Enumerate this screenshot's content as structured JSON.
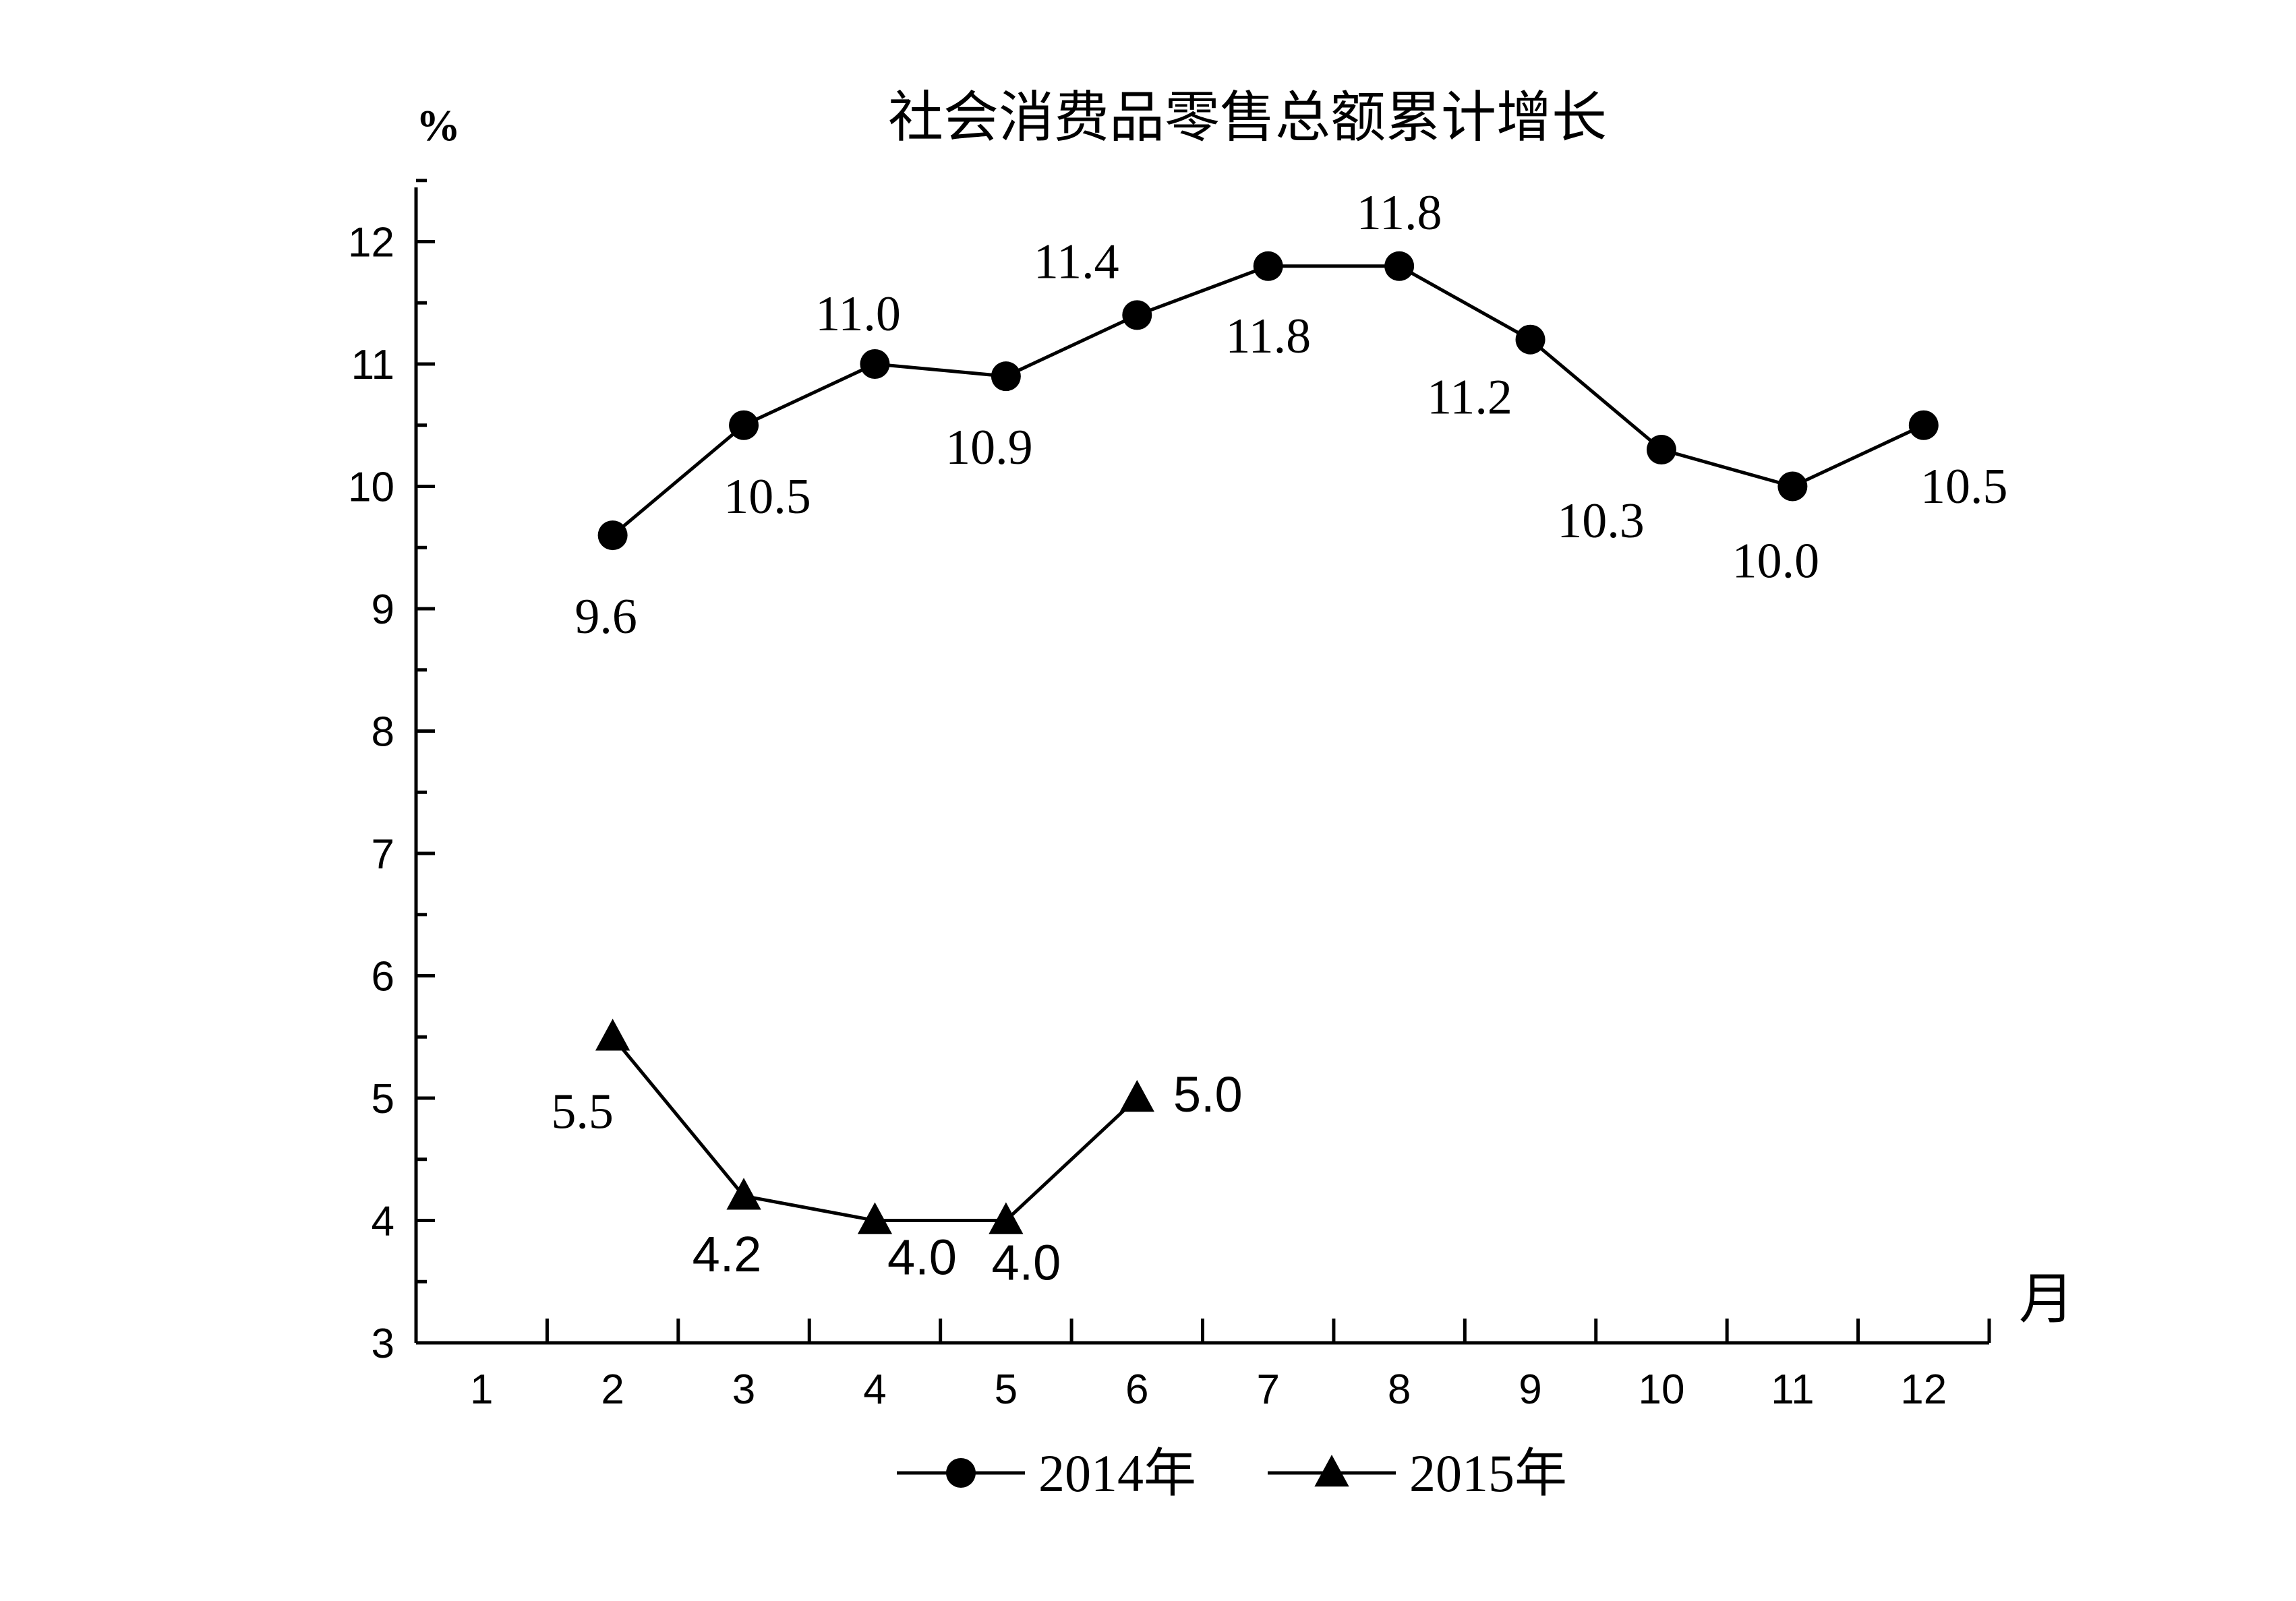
{
  "chart_data": {
    "type": "line",
    "title": "社会消费品零售总额累计增长",
    "ylabel": "%",
    "xlabel": "月",
    "x": [
      1,
      2,
      3,
      4,
      5,
      6,
      7,
      8,
      9,
      10,
      11,
      12
    ],
    "x_tick_labels": [
      "1",
      "2",
      "3",
      "4",
      "5",
      "6",
      "7",
      "8",
      "9",
      "10",
      "11",
      "12"
    ],
    "xlim": [
      0.5,
      12.5
    ],
    "ylim": [
      3,
      12.5
    ],
    "y_ticks": [
      3,
      4,
      5,
      6,
      7,
      8,
      9,
      10,
      11,
      12
    ],
    "y_tick_labels": [
      "3",
      "4",
      "5",
      "6",
      "7",
      "8",
      "9",
      "10",
      "11",
      "12"
    ],
    "grid": false,
    "legend_position": "bottom",
    "series": [
      {
        "name": "2014年",
        "marker": "circle",
        "color": "#000000",
        "x": [
          2,
          3,
          4,
          5,
          6,
          7,
          8,
          9,
          10,
          11,
          12
        ],
        "values": [
          9.6,
          10.5,
          11.0,
          10.9,
          11.4,
          11.8,
          11.8,
          11.2,
          10.3,
          10.0,
          10.5
        ],
        "labels": [
          "9.6",
          "10.5",
          "11.0",
          "10.9",
          "11.4",
          "11.8",
          "11.8",
          "11.2",
          "10.3",
          "10.0",
          "10.5"
        ]
      },
      {
        "name": "2015年",
        "marker": "triangle",
        "color": "#000000",
        "x": [
          2,
          3,
          4,
          5,
          6
        ],
        "values": [
          5.5,
          4.2,
          4.0,
          4.0,
          5.0
        ],
        "labels": [
          "5.5",
          "4.2",
          "4.0",
          "4.0",
          "5.0"
        ]
      }
    ]
  }
}
